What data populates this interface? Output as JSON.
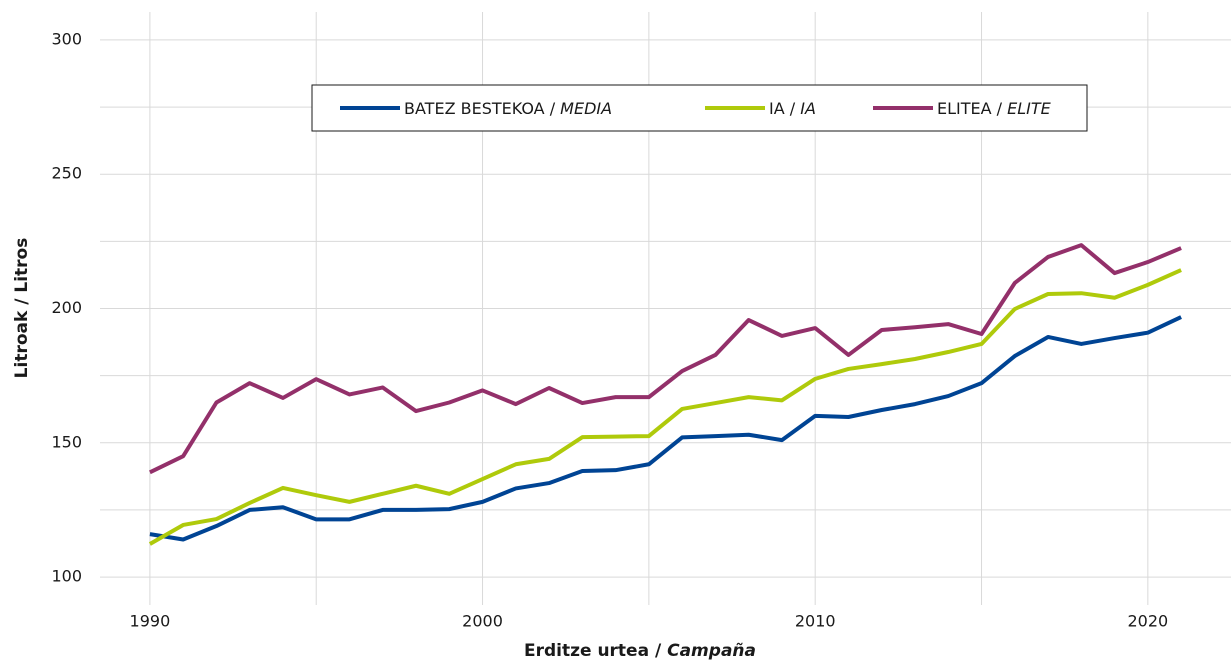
{
  "chart_data": {
    "type": "line",
    "x_axis_label": "Erditze urtea / Campaña",
    "y_axis_label": "Litroak / Litros",
    "x": [
      1990,
      1991,
      1992,
      1993,
      1994,
      1995,
      1996,
      1997,
      1998,
      1999,
      2000,
      2001,
      2002,
      2003,
      2004,
      2005,
      2006,
      2007,
      2008,
      2009,
      2010,
      2011,
      2012,
      2013,
      2014,
      2015,
      2016,
      2017,
      2018,
      2019,
      2020,
      2021
    ],
    "series": [
      {
        "name": "BATEZ BESTEKOA / MEDIA",
        "color": "#004494",
        "values": [
          116,
          114,
          119,
          125,
          126,
          121.5,
          121.5,
          125,
          125,
          125.3,
          128,
          133,
          135,
          139.5,
          139.8,
          142,
          152,
          152.5,
          153,
          151,
          160,
          159.6,
          162.2,
          164.4,
          167.4,
          172.2,
          182.3,
          189.4,
          186.8,
          189,
          191,
          196.8
        ]
      },
      {
        "name": "IA / IA",
        "color": "#afca0b",
        "values": [
          112.3,
          119.4,
          121.6,
          127.6,
          133.2,
          130.5,
          128,
          131,
          134,
          131,
          136.5,
          142,
          144,
          152.1,
          152.3,
          152.5,
          162.6,
          164.8,
          167,
          165.8,
          173.8,
          177.5,
          179.3,
          181.2,
          183.8,
          186.8,
          199.8,
          205.4,
          205.7,
          204,
          208.8,
          214.3
        ]
      },
      {
        "name": "ELITEA / ELITE",
        "color": "#93306a",
        "values": [
          139,
          145,
          165,
          172.2,
          166.7,
          173.7,
          168,
          170.6,
          161.8,
          165,
          169.5,
          164.4,
          170.4,
          164.8,
          167,
          167,
          176.7,
          182.7,
          195.7,
          189.8,
          192.7,
          182.7,
          192,
          193,
          194.2,
          190.5,
          209.5,
          219.2,
          223.6,
          213.2,
          217.3,
          222.5
        ]
      }
    ],
    "xlim": [
      1988.5,
      2022.5
    ],
    "xticks": [
      1990,
      2000,
      2010,
      2020
    ],
    "x_minor_ticks": [
      1995,
      2005,
      2015
    ],
    "ylim": [
      89.6,
      310.4
    ],
    "yticks": [
      100,
      150,
      200,
      250,
      300
    ],
    "y_minor_ticks": [
      125,
      175,
      225,
      275
    ],
    "grid": true,
    "legend": "top"
  }
}
